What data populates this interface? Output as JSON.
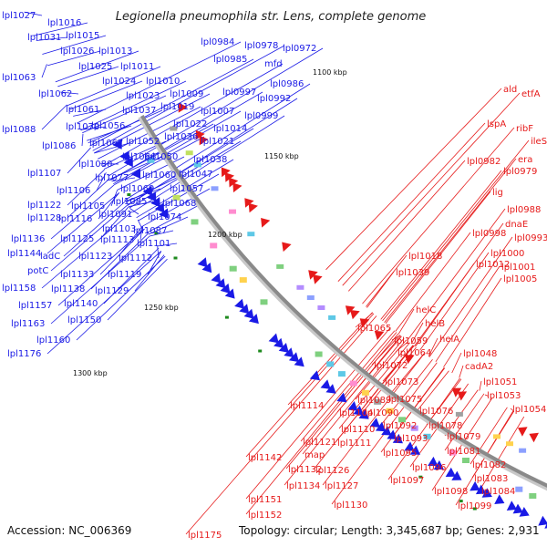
{
  "title": "Legionella pneumophila str. Lens, complete genome",
  "footer": {
    "accession": "Accession: NC_006369",
    "summary": "Topology: circular; Length: 3,345,687 bp; Genes: 2,931"
  },
  "colors": {
    "forward": "#1a1ae6",
    "reverse": "#e61a1a",
    "backbone": "#8a8a8a",
    "rna_marker": "#1e8a1e"
  },
  "kbp_labels": [
    "1100 kbp",
    "1150 kbp",
    "1200 kbp",
    "1250 kbp",
    "1300 kbp"
  ],
  "blue_labels": [
    "lpl1027",
    "lpl1016",
    "lpl1015",
    "lpl1031",
    "lpl1026",
    "lpl1013",
    "lpl1025",
    "lpl1011",
    "lpl1063",
    "lpl1024",
    "lpl1010",
    "lpl1062",
    "lpl1023",
    "lpl1009",
    "lpl1061",
    "lpl1019",
    "lpl1037",
    "lpl1007",
    "lpl1088",
    "lpl1070",
    "lpl1056",
    "lpl1022",
    "lpl1014",
    "lpl1036",
    "lpl1086",
    "lpl1067",
    "lpl1052",
    "lpl1021",
    "lpl1080",
    "lpl1066",
    "lpl1050",
    "lpl1038",
    "lpl1107",
    "lpl1077",
    "lpl1060",
    "lpl1047",
    "lpl1106",
    "lpl1069",
    "lpl1057",
    "lpl1122",
    "lpl1105",
    "lpl1085",
    "lpl1068",
    "lpl1128",
    "lpl1116",
    "lpl1091",
    "lpl1074",
    "lpl1103",
    "lpl1087",
    "lpl1136",
    "lpl1125",
    "lpl1113",
    "lpl1101",
    "lpl1144",
    "ladC",
    "lpl1123",
    "lpl1112",
    "potC",
    "lpl1133",
    "lpl1119",
    "lpl1158",
    "lpl1138",
    "lpl1129",
    "lpl1157",
    "lpl1140",
    "lpl1163",
    "lpl1150",
    "lpl1160",
    "lpl1176",
    "lpl0984",
    "lpl0978",
    "lpl0972",
    "lpl0985",
    "mfd",
    "lpl0986",
    "lpl0997",
    "lpl0992",
    "lpl0999"
  ],
  "red_labels": [
    "ald",
    "etfA",
    "lspA",
    "ribF",
    "ileS",
    "era",
    "lpl0982",
    "lpl0979",
    "lig",
    "lpl0988",
    "dnaE",
    "lpl0998",
    "lpl0993",
    "lpl1000",
    "lpl1018",
    "lpl1012",
    "lpl1001",
    "lpl1039",
    "lpl1005",
    "helC",
    "helB",
    "lpl1065",
    "helA",
    "lpl1059",
    "lpl1048",
    "lpl1064",
    "cadA2",
    "lpl1072",
    "lpl1051",
    "lpl1073",
    "lpl1053",
    "lpl1075",
    "lpl1114",
    "lpl1089",
    "lpl1054",
    "lpl1104",
    "lpl1090",
    "lpl1076",
    "lpl1092",
    "lpl1078",
    "lpl1110",
    "lpl1093",
    "lpl1079",
    "lpl1121",
    "lpl1111",
    "lpl1095",
    "lpl1081",
    "map",
    "lpl1142",
    "lpl1132",
    "lpl1126",
    "lpl1096",
    "lpl1082",
    "lpl1097",
    "lpl1083",
    "lpl1134",
    "lpl1127",
    "lpl1098",
    "lpl1084",
    "lpl1151",
    "lpl1130",
    "lpl1099",
    "lpl1152",
    "lpl1175"
  ]
}
